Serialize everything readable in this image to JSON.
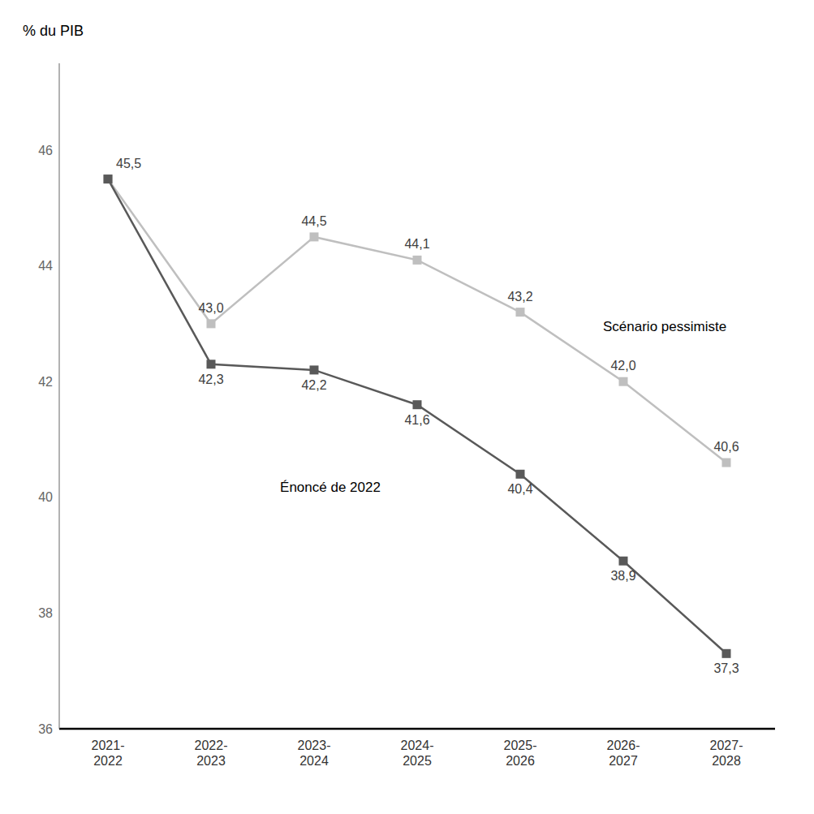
{
  "chart_data": {
    "type": "line",
    "y_label": "% du PIB",
    "categories": [
      "2021-\n2022",
      "2022-\n2023",
      "2023-\n2024",
      "2024-\n2025",
      "2025-\n2026",
      "2026-\n2027",
      "2027-\n2028"
    ],
    "series": [
      {
        "name": "Scénario pessimiste",
        "color": "#bfbfbf",
        "marker": "square",
        "values": [
          45.5,
          43.0,
          44.5,
          44.1,
          43.2,
          42.0,
          40.6
        ],
        "value_labels": [
          null,
          "43,0",
          "44,5",
          "44,1",
          "43,2",
          "42,0",
          "40,6"
        ]
      },
      {
        "name": "Énoncé de 2022",
        "color": "#595959",
        "marker": "square",
        "values": [
          45.5,
          42.3,
          42.2,
          41.6,
          40.4,
          38.9,
          37.3
        ],
        "value_labels": [
          "45,5",
          "42,3",
          "42,2",
          "41,6",
          "40,4",
          "38,9",
          "37,3"
        ]
      }
    ],
    "ylim": [
      36,
      47.5
    ],
    "yticks": [
      36,
      38,
      40,
      42,
      44,
      46
    ],
    "grid": false,
    "data_labels": true
  }
}
